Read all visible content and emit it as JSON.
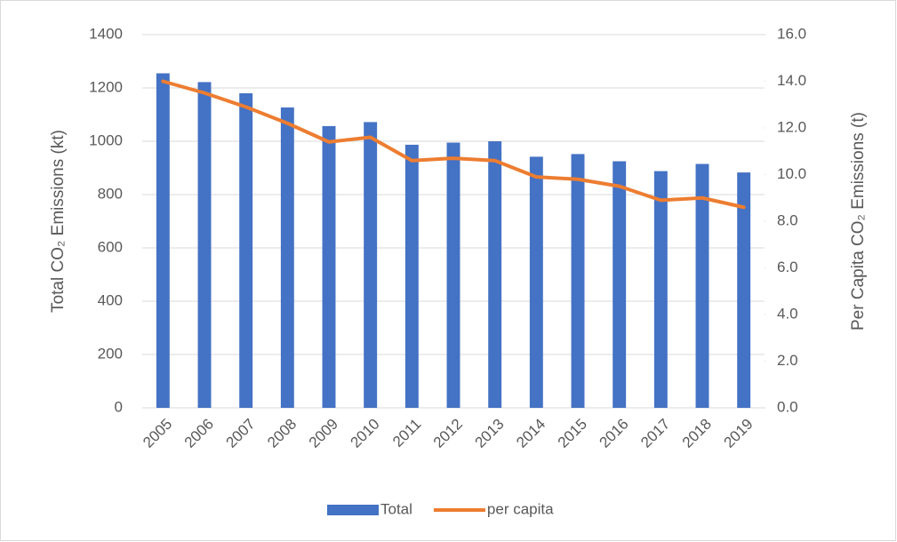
{
  "chart_data": {
    "type": "combo",
    "y_label": "Total CO₂ Emissions (kt)",
    "y2_label": "Per Capita CO₂ Emissions (t)",
    "categories": [
      "2005",
      "2006",
      "2007",
      "2008",
      "2009",
      "2010",
      "2011",
      "2012",
      "2013",
      "2014",
      "2015",
      "2016",
      "2017",
      "2018",
      "2019"
    ],
    "series": [
      {
        "name": "Total",
        "type": "bar",
        "color": "#4472c4",
        "values": [
          1255,
          1222,
          1180,
          1127,
          1057,
          1072,
          987,
          995,
          1000,
          942,
          952,
          925,
          888,
          915,
          883
        ]
      },
      {
        "name": "per capita",
        "type": "line",
        "axis": "y2",
        "color": "#ed7d31",
        "values": [
          14.0,
          13.5,
          12.9,
          12.2,
          11.4,
          11.6,
          10.6,
          10.7,
          10.6,
          9.9,
          9.8,
          9.5,
          8.9,
          9.0,
          8.6
        ]
      }
    ],
    "ylim": [
      0,
      1400
    ],
    "yticks": [
      0,
      200,
      400,
      600,
      800,
      1000,
      1200,
      1400
    ],
    "y2lim": [
      0,
      16
    ],
    "y2ticks": [
      {
        "value": 0,
        "label": "0.0"
      },
      {
        "value": 2,
        "label": "2.0"
      },
      {
        "value": 4,
        "label": "4.0"
      },
      {
        "value": 6,
        "label": "6.0"
      },
      {
        "value": 8,
        "label": "8.0"
      },
      {
        "value": 10,
        "label": "10.0"
      },
      {
        "value": 12,
        "label": "12.0"
      },
      {
        "value": 14,
        "label": "14.0"
      },
      {
        "value": 16,
        "label": "16.0"
      }
    ],
    "grid": true,
    "legend": "bottom"
  }
}
